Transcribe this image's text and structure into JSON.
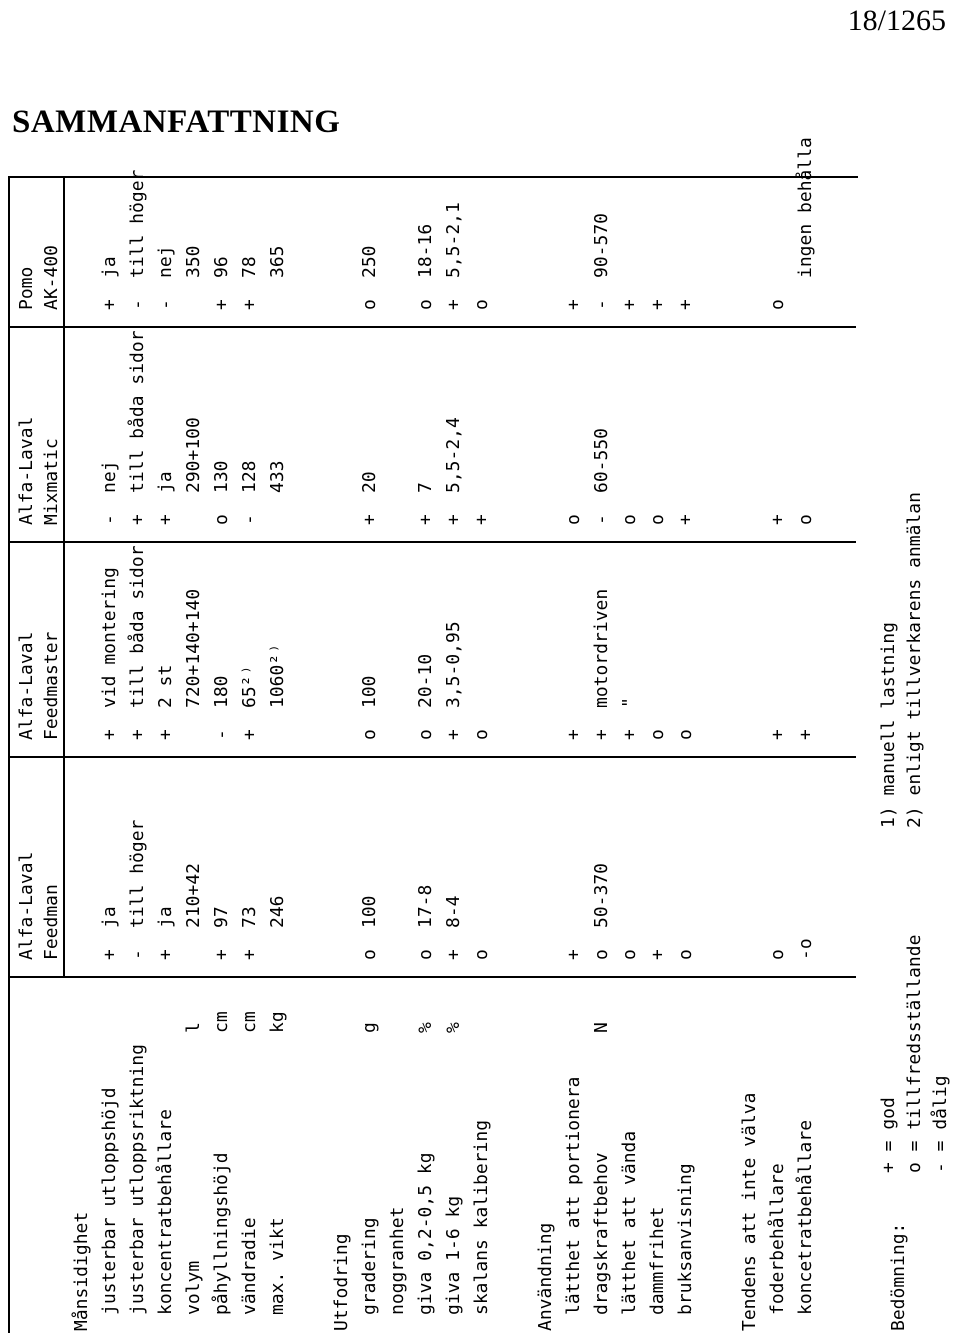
{
  "page_number": "18/1265",
  "title": "SAMMANFATTNING",
  "columns": [
    {
      "brand": "Alfa-Laval",
      "model": "Feedman"
    },
    {
      "brand": "Alfa-Laval",
      "model": "Feedmaster"
    },
    {
      "brand": "Alfa-Laval",
      "model": "Mixmatic"
    },
    {
      "brand": "Pomo",
      "model": "AK-400"
    }
  ],
  "sections": [
    {
      "title": "Månsidighet",
      "rows": [
        {
          "label": "justerbar utloppshöjd",
          "unit": "",
          "cells": [
            [
              "+",
              "ja"
            ],
            [
              "+",
              "vid montering"
            ],
            [
              "-",
              "nej"
            ],
            [
              "+",
              "ja"
            ]
          ]
        },
        {
          "label": "justerbar utloppsriktning",
          "unit": "",
          "cells": [
            [
              "-",
              "till höger"
            ],
            [
              "+",
              "till båda sidor"
            ],
            [
              "+",
              "till båda sidor"
            ],
            [
              "-",
              "till höger"
            ]
          ]
        },
        {
          "label": "koncentratbehållare",
          "unit": "",
          "cells": [
            [
              "+",
              "ja"
            ],
            [
              "+",
              "2 st"
            ],
            [
              "+",
              "ja"
            ],
            [
              "-",
              "nej"
            ]
          ]
        },
        {
          "label": "volym",
          "unit": "l",
          "cells": [
            [
              "",
              "210+42"
            ],
            [
              "",
              "720+140+140"
            ],
            [
              "",
              "290+100"
            ],
            [
              "",
              "350"
            ]
          ]
        },
        {
          "label": "påhyllningshöjd",
          "unit": "cm",
          "cells": [
            [
              "+",
              "97"
            ],
            [
              "-",
              "180"
            ],
            [
              "o",
              "130"
            ],
            [
              "+",
              "96"
            ]
          ]
        },
        {
          "label": "vändradie",
          "unit": "cm",
          "cells": [
            [
              "+",
              "73"
            ],
            [
              "+",
              "65²⁾"
            ],
            [
              "-",
              "128"
            ],
            [
              "+",
              "78"
            ]
          ]
        },
        {
          "label": "max. vikt",
          "unit": "kg",
          "cells": [
            [
              "",
              "246"
            ],
            [
              "",
              "1060²⁾"
            ],
            [
              "",
              "433"
            ],
            [
              "",
              "365"
            ]
          ]
        }
      ]
    },
    {
      "title": "Utfodring",
      "rows": [
        {
          "label": "gradering",
          "unit": "g",
          "cells": [
            [
              "o",
              "100"
            ],
            [
              "o",
              "100"
            ],
            [
              "+",
              "20"
            ],
            [
              "o",
              "250"
            ]
          ]
        },
        {
          "label": "noggranhet",
          "unit": "",
          "cells": [
            [
              "",
              ""
            ],
            [
              "",
              ""
            ],
            [
              "",
              ""
            ],
            [
              "",
              ""
            ]
          ]
        },
        {
          "label": "giva 0,2-0,5 kg",
          "unit": "%",
          "cells": [
            [
              "o",
              "17-8"
            ],
            [
              "o",
              "20-10"
            ],
            [
              "+",
              "7"
            ],
            [
              "o",
              "18-16"
            ]
          ]
        },
        {
          "label": "giva 1-6 kg",
          "unit": "%",
          "cells": [
            [
              "+",
              "8-4"
            ],
            [
              "+",
              "3,5-0,95"
            ],
            [
              "+",
              "5,5-2,4"
            ],
            [
              "+",
              "5,5-2,1"
            ]
          ]
        },
        {
          "label": "skalans kalibering",
          "unit": "",
          "cells": [
            [
              "o",
              ""
            ],
            [
              "o",
              ""
            ],
            [
              "+",
              ""
            ],
            [
              "o",
              ""
            ]
          ]
        }
      ]
    },
    {
      "title": "Användning",
      "rows": [
        {
          "label": "lätthet att portionera",
          "unit": "",
          "cells": [
            [
              "+",
              ""
            ],
            [
              "+",
              ""
            ],
            [
              "o",
              ""
            ],
            [
              "+",
              ""
            ]
          ]
        },
        {
          "label": "dragskraftbehov",
          "unit": "N",
          "cells": [
            [
              "o",
              "50-370"
            ],
            [
              "+",
              "motordriven"
            ],
            [
              "-",
              "60-550"
            ],
            [
              "-",
              "90-570"
            ]
          ]
        },
        {
          "label": "lätthet att vända",
          "unit": "",
          "cells": [
            [
              "o",
              ""
            ],
            [
              "+",
              "\""
            ],
            [
              "o",
              ""
            ],
            [
              "+",
              ""
            ]
          ]
        },
        {
          "label": "dammfrihet",
          "unit": "",
          "cells": [
            [
              "+",
              ""
            ],
            [
              "o",
              ""
            ],
            [
              "o",
              ""
            ],
            [
              "+",
              ""
            ]
          ]
        },
        {
          "label": "bruksanvisning",
          "unit": "",
          "cells": [
            [
              "o",
              ""
            ],
            [
              "o",
              ""
            ],
            [
              "+",
              ""
            ],
            [
              "+",
              ""
            ]
          ]
        }
      ]
    },
    {
      "title": "Tendens att inte välva",
      "rows": [
        {
          "label": "foderbehållare",
          "unit": "",
          "cells": [
            [
              "o",
              ""
            ],
            [
              "+",
              ""
            ],
            [
              "+",
              ""
            ],
            [
              "o",
              ""
            ]
          ]
        },
        {
          "label": "koncetratbehållare",
          "unit": "",
          "cells": [
            [
              "-o",
              ""
            ],
            [
              "+",
              ""
            ],
            [
              "o",
              ""
            ],
            [
              "",
              "ingen behålla"
            ]
          ]
        }
      ]
    }
  ],
  "legend": {
    "label": "Bedömning:",
    "items": [
      "+ = god",
      "o = tillfredsställande",
      "- = dålig"
    ],
    "notes": [
      "1) manuell lastning",
      "2) enligt tillverkarens anmälan"
    ]
  }
}
